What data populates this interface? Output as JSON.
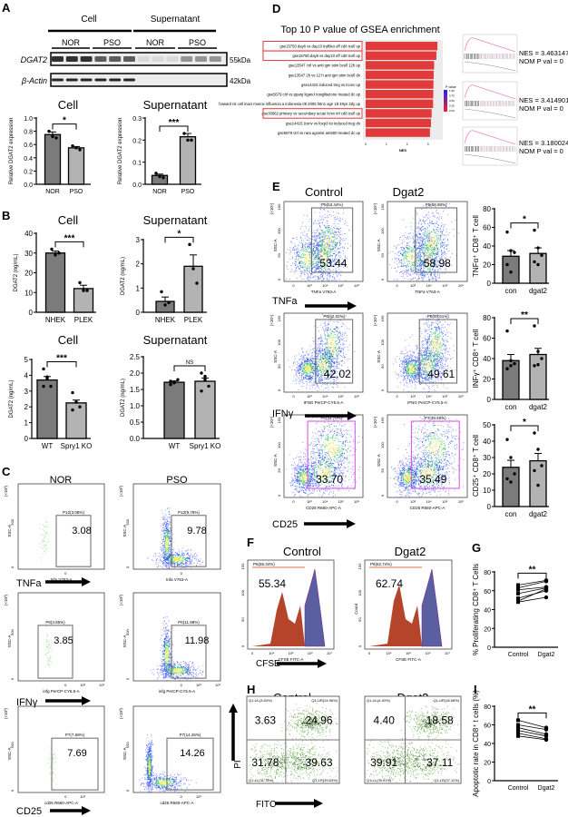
{
  "panel_labels": [
    "A",
    "B",
    "C",
    "D",
    "E",
    "F",
    "G",
    "H",
    "I"
  ],
  "blot": {
    "group_labels": [
      "Cell",
      "Supernatant"
    ],
    "sub_labels": [
      "NOR",
      "PSO",
      "NOR",
      "PSO"
    ],
    "rows": [
      {
        "protein": "DGAT2",
        "size": "55kDa"
      },
      {
        "protein": "β-Actin",
        "size": "42kDa"
      }
    ]
  },
  "markers": {
    "tnfa": "TNFa",
    "ifng": "IFNγ",
    "cd25": "CD25",
    "cfse": "CFSE",
    "fitc": "FITC",
    "pi": "PI"
  },
  "chart_data": [
    {
      "id": "A-cell",
      "type": "bar",
      "title": "Cell",
      "ylabel": "Relative DGAT2 expression",
      "categories": [
        "NOR",
        "PSO"
      ],
      "values": [
        0.75,
        0.55
      ],
      "sem": [
        0.04,
        0.02
      ],
      "points": [
        [
          0.8,
          0.72,
          0.7
        ],
        [
          0.58,
          0.55,
          0.52
        ]
      ],
      "ylim": [
        0,
        1.0
      ],
      "yticks": [
        "0.0",
        "0.2",
        "0.4",
        "0.6",
        "0.8",
        "1.0"
      ],
      "significance": "*",
      "colors": [
        "#7b7b7b",
        "#b3b3b3"
      ]
    },
    {
      "id": "A-sup",
      "type": "bar",
      "title": "Supernatant",
      "ylabel": "Relative DGAT2 expression",
      "categories": [
        "NOR",
        "PSO"
      ],
      "values": [
        0.04,
        0.215
      ],
      "sem": [
        0.006,
        0.015
      ],
      "points": [
        [
          0.05,
          0.035,
          0.03
        ],
        [
          0.23,
          0.2,
          0.2
        ]
      ],
      "ylim": [
        0,
        0.3
      ],
      "yticks": [
        "0.0",
        "0.1",
        "0.2",
        "0.3"
      ],
      "significance": "***",
      "colors": [
        "#7b7b7b",
        "#b3b3b3"
      ]
    },
    {
      "id": "B-cell",
      "type": "bar",
      "title": "Cell",
      "ylabel": "DGAT2 (ng/mL)",
      "categories": [
        "NHEK",
        "PLEK"
      ],
      "values": [
        30,
        12
      ],
      "sem": [
        1,
        1.7
      ],
      "points": [
        [
          32,
          29,
          30
        ],
        [
          15,
          11,
          11
        ]
      ],
      "ylim": [
        0,
        40
      ],
      "yticks": [
        "0",
        "10",
        "20",
        "30",
        "40"
      ],
      "significance": "***",
      "colors": [
        "#7b7b7b",
        "#b3b3b3"
      ]
    },
    {
      "id": "B-sup",
      "type": "bar",
      "title": "Supernatant",
      "ylabel": "DGAT2 (ng/mL)",
      "categories": [
        "NHEK",
        "PLEK"
      ],
      "values": [
        0.45,
        1.9
      ],
      "sem": [
        0.18,
        0.47
      ],
      "points": [
        [
          0.85,
          0.3,
          0.4
        ],
        [
          2.8,
          1.8,
          1.2
        ]
      ],
      "ylim": [
        0,
        3
      ],
      "yticks": [
        "0",
        "1",
        "2",
        "3"
      ],
      "significance": "*",
      "colors": [
        "#7b7b7b",
        "#b3b3b3"
      ]
    },
    {
      "id": "B-cell-ko",
      "type": "bar",
      "title": "Cell",
      "ylabel": "DGAT2 (ng/mL)",
      "categories": [
        "WT",
        "Spry1 KO"
      ],
      "values": [
        3.7,
        2.25
      ],
      "sem": [
        0.22,
        0.18
      ],
      "points": [
        [
          4.4,
          3.9,
          3.3,
          3.3,
          3.8
        ],
        [
          2.9,
          2.3,
          2.0,
          1.8,
          2.3
        ]
      ],
      "ylim": [
        0,
        5
      ],
      "yticks": [
        "0",
        "1",
        "2",
        "3",
        "4",
        "5"
      ],
      "significance": "***",
      "colors": [
        "#7b7b7b",
        "#b3b3b3"
      ]
    },
    {
      "id": "B-sup-ko",
      "type": "bar",
      "title": "Supernatant",
      "ylabel": "DGAT2 (ng/mL)",
      "categories": [
        "WT",
        "Spry1 KO"
      ],
      "values": [
        1.72,
        1.75
      ],
      "sem": [
        0.04,
        0.1
      ],
      "points": [
        [
          1.75,
          1.7,
          1.8,
          1.65,
          1.72
        ],
        [
          2.0,
          1.9,
          1.6,
          1.45,
          1.8
        ]
      ],
      "ylim": [
        0,
        2.5
      ],
      "yticks": [
        "0.0",
        "0.5",
        "1.0",
        "1.5",
        "2.0",
        "2.5"
      ],
      "significance": "NS",
      "colors": [
        "#7b7b7b",
        "#b3b3b3"
      ]
    },
    {
      "id": "E-tnfa",
      "type": "bar",
      "title": "",
      "ylabel": "TNFα⁺ CD8⁺ T cell",
      "categories": [
        "con",
        "dgat2"
      ],
      "values": [
        29,
        32
      ],
      "sem": [
        6,
        6
      ],
      "points": [
        [
          55,
          35,
          33,
          20,
          12
        ],
        [
          57,
          38,
          30,
          23,
          20
        ]
      ],
      "ylim": [
        0,
        80
      ],
      "yticks": [
        "0",
        "20",
        "40",
        "60",
        "80"
      ],
      "significance": "*",
      "colors": [
        "#7b7b7b",
        "#b3b3b3"
      ]
    },
    {
      "id": "E-ifng",
      "type": "bar",
      "title": "",
      "ylabel": "INFγ⁺ CD8⁺ T cell",
      "categories": [
        "con",
        "dgat2"
      ],
      "values": [
        38,
        44
      ],
      "sem": [
        6,
        6
      ],
      "points": [
        [
          67,
          38,
          35,
          30,
          33
        ],
        [
          72,
          47,
          40,
          33,
          34
        ]
      ],
      "ylim": [
        0,
        80
      ],
      "yticks": [
        "0",
        "20",
        "40",
        "60",
        "80"
      ],
      "significance": "**",
      "colors": [
        "#7b7b7b",
        "#b3b3b3"
      ]
    },
    {
      "id": "E-cd25",
      "type": "bar",
      "title": "",
      "ylabel": "CD25⁺ CD8⁺ T cell",
      "categories": [
        "con",
        "dgat2"
      ],
      "values": [
        24,
        28
      ],
      "sem": [
        4.3,
        4.5
      ],
      "points": [
        [
          41,
          30,
          20,
          17,
          15
        ],
        [
          45,
          35,
          25,
          22,
          13
        ]
      ],
      "ylim": [
        0,
        50
      ],
      "yticks": [
        "0",
        "10",
        "20",
        "30",
        "40",
        "50"
      ],
      "significance": "*",
      "colors": [
        "#7b7b7b",
        "#b3b3b3"
      ]
    },
    {
      "id": "G",
      "type": "paired",
      "title": "",
      "ylabel": "% Proliferating CD8⁺ T Cells",
      "categories": [
        "Control",
        "Dgat2"
      ],
      "pairs": [
        [
          66,
          71
        ],
        [
          63,
          70
        ],
        [
          61,
          64
        ],
        [
          57,
          63
        ],
        [
          52,
          60
        ],
        [
          49,
          62
        ],
        [
          48,
          53
        ]
      ],
      "ylim": [
        0,
        80
      ],
      "yticks": [
        "0",
        "20",
        "40",
        "60",
        "80"
      ],
      "significance": "**"
    },
    {
      "id": "I",
      "type": "paired",
      "title": "",
      "ylabel": "Apoptotic rate in CD8⁺ t cells (%)",
      "categories": [
        "Control",
        "Dgat2"
      ],
      "pairs": [
        [
          65,
          57
        ],
        [
          60,
          55
        ],
        [
          57,
          50
        ],
        [
          54,
          48
        ],
        [
          51,
          45
        ],
        [
          48,
          44
        ]
      ],
      "ylim": [
        0,
        80
      ],
      "yticks": [
        "0",
        "20",
        "40",
        "60",
        "80"
      ],
      "significance": "**"
    },
    {
      "id": "D",
      "type": "bar",
      "orientation": "horizontal",
      "title": "Top 10 P value of GSEA enrichment",
      "xlabel": "NES",
      "categories": [
        "gse15750 day6 vs day10 traf6ko eff cd8 tcell up",
        "gse15750 day6 vs day10 eff cd8 tcell up",
        "gse13547 ctrl vs anti igm stim bcell 12h up",
        "gse13547 2h vs 12 h anti igm stim bcell dn",
        "gse14415 induced treg vs tconv up",
        "gse5679 ctrl vs pparg ligand rosiglitazone treated dc up",
        "howard nk cell inact monov influenza a indonesia 05 2005 h5n1 age 18 49yo 3dy up",
        "gse30962 primary vs secondary acute lcmv inf cd8 tcell up",
        "gse14415 tconv vs foxp3 ko induced treg dn",
        "gse5679 ctrl vs rara agonist am580 treated dc up"
      ],
      "values": [
        3.46,
        3.41,
        3.3,
        3.28,
        3.27,
        3.26,
        3.25,
        3.18,
        3.15,
        3.1
      ],
      "highlighted": [
        0,
        1,
        7
      ],
      "xlim": [
        0,
        3.5
      ],
      "xticks": [
        "0",
        "1",
        "2",
        "3"
      ],
      "legend": {
        "title": "P value",
        "ticks": [
          "1.00",
          "0.75",
          "0.50",
          "0.25",
          "0.00"
        ]
      },
      "bar_color": "#e03a3a"
    }
  ],
  "gsea": [
    {
      "nes": "NES = 3.4631479",
      "pval": "NOM P val = 0"
    },
    {
      "nes": "NES = 3.4149013",
      "pval": "NOM P val = 0"
    },
    {
      "nes": "NES = 3.1800246",
      "pval": "NOM P val = 0"
    }
  ],
  "panel_c": {
    "columns": [
      "NOR",
      "PSO"
    ],
    "ylabel": "SSC-A",
    "yunit": "(×10³)",
    "yticks": [
      "0",
      "500"
    ],
    "rows": [
      {
        "xlabel": "tnfa V763-A",
        "xticks": [
          "0"
        ],
        "cells": [
          {
            "gate": "P12(3.08%)",
            "value": "3.08"
          },
          {
            "gate": "P12(9.78%)",
            "value": "9.78"
          }
        ]
      },
      {
        "xlabel": "infg PerCP-CY5.5-A",
        "xticks": [
          "0",
          "10⁵",
          "10⁶"
        ],
        "cells": [
          {
            "gate": "P6(3.85%)",
            "value": "3.85"
          },
          {
            "gate": "P6(11.98%)",
            "value": "11.98"
          }
        ]
      },
      {
        "xlabel": "cd25 R660-APC-A",
        "xticks": [
          "0",
          "10⁶"
        ],
        "cells": [
          {
            "gate": "P7(7.69%)",
            "value": "7.69"
          },
          {
            "gate": "P7(14.26%)",
            "value": "14.26"
          }
        ]
      }
    ]
  },
  "panel_e": {
    "columns": [
      "Control",
      "Dgat2"
    ],
    "ylabel": "SSC-A",
    "yunit": "(×10⁴)",
    "yticks": [
      "0",
      "50",
      "100",
      "150"
    ],
    "xticks": [
      "0",
      "10³",
      "10⁴",
      "10⁵",
      "10⁶"
    ],
    "rows": [
      {
        "xlabel": "TNFa V763-A",
        "cells": [
          {
            "gate": "P5(53.44%)",
            "value": "53.44"
          },
          {
            "gate": "P5(58.98%)",
            "value": "58.98"
          }
        ]
      },
      {
        "xlabel": "IFNG PerCP-CY5.5-A",
        "cells": [
          {
            "gate": "P6(42.02%)",
            "value": "42.02"
          },
          {
            "gate": "P6(49.61%)",
            "value": "49.61"
          }
        ]
      },
      {
        "xlabel": "CD25 R660-APC-A",
        "cells": [
          {
            "gate": "P7(33.70%)",
            "value": "33.70"
          },
          {
            "gate": "P7(35.49%)",
            "value": "35.49"
          }
        ]
      }
    ]
  },
  "panel_f": {
    "columns": [
      "Control",
      "Dgat2"
    ],
    "xlabel": "CFSE FITC-A",
    "ylabel": "Count",
    "yticks": [
      "0",
      "50",
      "100",
      "150"
    ],
    "xticks": [
      "0",
      "10⁴",
      "10⁵",
      "10⁶",
      "10⁷"
    ],
    "cells": [
      {
        "gate": "P6(55.34%)",
        "value": "55.34"
      },
      {
        "gate": "P6(62.74%)",
        "value": "62.74"
      }
    ]
  },
  "panel_h": {
    "columns": [
      "Control",
      "Dgat2"
    ],
    "cells": [
      {
        "ul": "3.63",
        "ur": "24.96",
        "ll": "31.78",
        "lr": "39.63",
        "ul_gate": "Q1-UL(3.63%)",
        "ur_gate": "Q1-UR(24.96%)",
        "ll_gate": "Q1-LL(31.78%)",
        "lr_gate": "Q1-LR(39.63%)"
      },
      {
        "ul": "4.40",
        "ur": "18.58",
        "ll": "39.91",
        "lr": "37.11",
        "ul_gate": "Q1-UL(4.40%)",
        "ur_gate": "Q1-UR(18.58%)",
        "ll_gate": "Q1-LL(39.91%)",
        "lr_gate": "Q1-LR(37.11%)"
      }
    ]
  }
}
